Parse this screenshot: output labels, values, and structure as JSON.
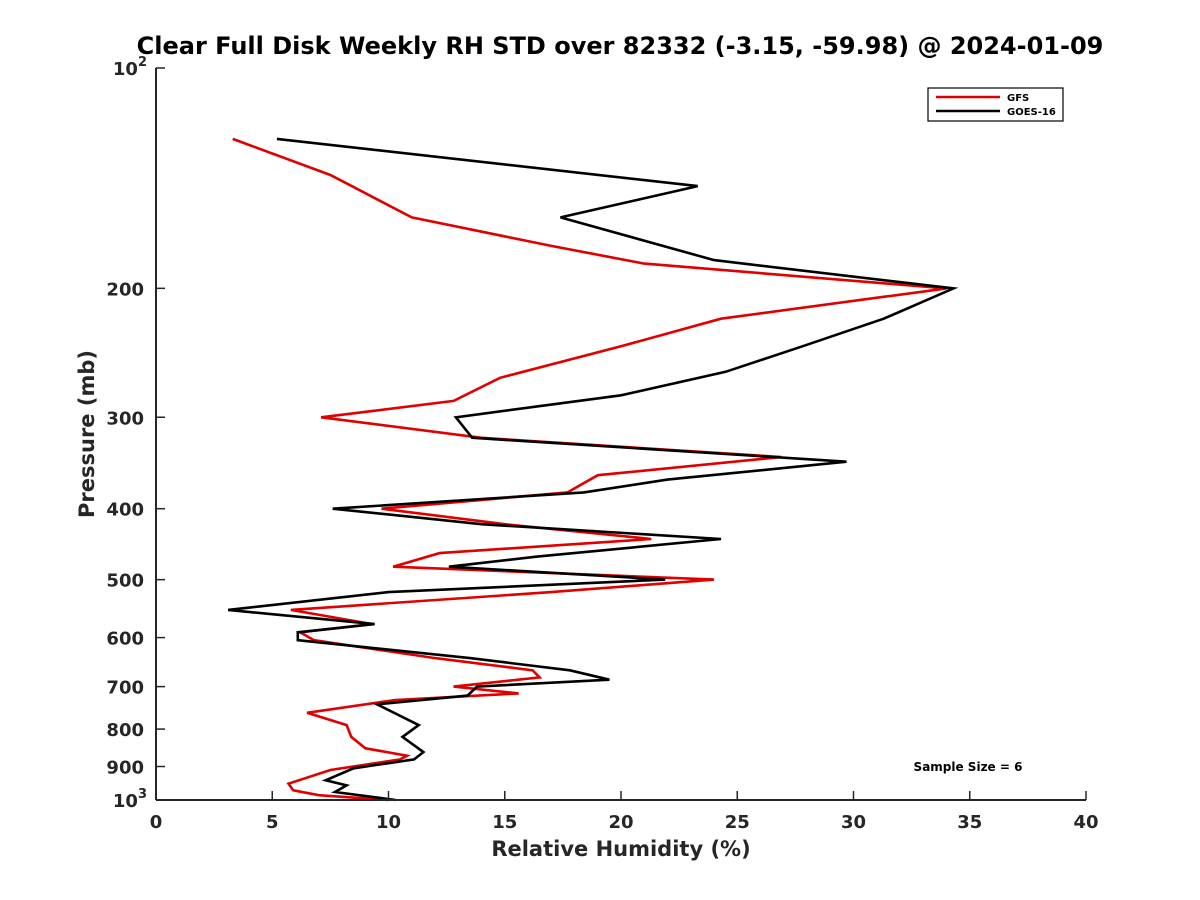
{
  "chart_data": {
    "type": "line",
    "title": "Clear Full Disk Weekly RH STD over 82332 (-3.15, -59.98) @ 2024-01-09",
    "xlabel": "Relative Humidity (%)",
    "ylabel": "Pressure (mb)",
    "xlim": [
      0,
      40
    ],
    "ylim": [
      100,
      1000
    ],
    "y_scale": "log",
    "y_reversed": true,
    "grid": false,
    "legend_position": "top-right",
    "x_ticks": [
      {
        "value": 0,
        "label": "0"
      },
      {
        "value": 5,
        "label": "5"
      },
      {
        "value": 10,
        "label": "10"
      },
      {
        "value": 15,
        "label": "15"
      },
      {
        "value": 20,
        "label": "20"
      },
      {
        "value": 25,
        "label": "25"
      },
      {
        "value": 30,
        "label": "30"
      },
      {
        "value": 35,
        "label": "35"
      },
      {
        "value": 40,
        "label": "40"
      }
    ],
    "y_ticks": [
      {
        "value": 100,
        "base": "10",
        "exp": "2"
      },
      {
        "value": 200,
        "label": "200"
      },
      {
        "value": 300,
        "label": "300"
      },
      {
        "value": 400,
        "label": "400"
      },
      {
        "value": 500,
        "label": "500"
      },
      {
        "value": 600,
        "label": "600"
      },
      {
        "value": 700,
        "label": "700"
      },
      {
        "value": 800,
        "label": "800"
      },
      {
        "value": 900,
        "label": "900"
      },
      {
        "value": 1000,
        "base": "10",
        "exp": "3"
      }
    ],
    "series": [
      {
        "name": "GFS",
        "color": "#e00000",
        "points": [
          {
            "x": 3.3,
            "y": 125
          },
          {
            "x": 7.5,
            "y": 140
          },
          {
            "x": 11.0,
            "y": 160
          },
          {
            "x": 17.0,
            "y": 175
          },
          {
            "x": 21.0,
            "y": 185
          },
          {
            "x": 34.0,
            "y": 200
          },
          {
            "x": 24.3,
            "y": 220
          },
          {
            "x": 20.0,
            "y": 240
          },
          {
            "x": 14.8,
            "y": 265
          },
          {
            "x": 12.8,
            "y": 285
          },
          {
            "x": 7.1,
            "y": 300
          },
          {
            "x": 14.0,
            "y": 320
          },
          {
            "x": 26.9,
            "y": 340
          },
          {
            "x": 19.0,
            "y": 360
          },
          {
            "x": 17.7,
            "y": 380
          },
          {
            "x": 9.7,
            "y": 400
          },
          {
            "x": 15.0,
            "y": 420
          },
          {
            "x": 21.3,
            "y": 440
          },
          {
            "x": 12.2,
            "y": 460
          },
          {
            "x": 10.2,
            "y": 480
          },
          {
            "x": 24.0,
            "y": 500
          },
          {
            "x": 17.0,
            "y": 520
          },
          {
            "x": 5.8,
            "y": 550
          },
          {
            "x": 9.3,
            "y": 575
          },
          {
            "x": 6.2,
            "y": 590
          },
          {
            "x": 6.8,
            "y": 605
          },
          {
            "x": 12.0,
            "y": 640
          },
          {
            "x": 16.2,
            "y": 665
          },
          {
            "x": 16.5,
            "y": 680
          },
          {
            "x": 12.8,
            "y": 700
          },
          {
            "x": 15.6,
            "y": 715
          },
          {
            "x": 10.3,
            "y": 730
          },
          {
            "x": 6.5,
            "y": 760
          },
          {
            "x": 8.2,
            "y": 790
          },
          {
            "x": 8.4,
            "y": 820
          },
          {
            "x": 9.0,
            "y": 850
          },
          {
            "x": 10.8,
            "y": 870
          },
          {
            "x": 10.5,
            "y": 880
          },
          {
            "x": 7.5,
            "y": 910
          },
          {
            "x": 5.7,
            "y": 950
          },
          {
            "x": 5.9,
            "y": 970
          },
          {
            "x": 7.0,
            "y": 985
          },
          {
            "x": 10.0,
            "y": 1000
          }
        ]
      },
      {
        "name": "GOES-16",
        "color": "#000000",
        "points": [
          {
            "x": 5.2,
            "y": 125
          },
          {
            "x": 23.3,
            "y": 145
          },
          {
            "x": 17.4,
            "y": 160
          },
          {
            "x": 24.0,
            "y": 183
          },
          {
            "x": 34.3,
            "y": 200
          },
          {
            "x": 31.3,
            "y": 220
          },
          {
            "x": 27.8,
            "y": 240
          },
          {
            "x": 24.5,
            "y": 260
          },
          {
            "x": 20.0,
            "y": 280
          },
          {
            "x": 12.9,
            "y": 300
          },
          {
            "x": 13.6,
            "y": 320
          },
          {
            "x": 29.7,
            "y": 345
          },
          {
            "x": 22.0,
            "y": 365
          },
          {
            "x": 18.4,
            "y": 380
          },
          {
            "x": 7.6,
            "y": 400
          },
          {
            "x": 14.0,
            "y": 420
          },
          {
            "x": 24.3,
            "y": 440
          },
          {
            "x": 16.4,
            "y": 465
          },
          {
            "x": 12.6,
            "y": 480
          },
          {
            "x": 21.9,
            "y": 500
          },
          {
            "x": 10.0,
            "y": 520
          },
          {
            "x": 3.1,
            "y": 550
          },
          {
            "x": 9.4,
            "y": 575
          },
          {
            "x": 6.1,
            "y": 590
          },
          {
            "x": 6.1,
            "y": 605
          },
          {
            "x": 13.5,
            "y": 640
          },
          {
            "x": 17.8,
            "y": 665
          },
          {
            "x": 19.5,
            "y": 685
          },
          {
            "x": 13.8,
            "y": 700
          },
          {
            "x": 13.4,
            "y": 720
          },
          {
            "x": 9.5,
            "y": 740
          },
          {
            "x": 11.3,
            "y": 790
          },
          {
            "x": 10.6,
            "y": 820
          },
          {
            "x": 11.5,
            "y": 860
          },
          {
            "x": 11.1,
            "y": 880
          },
          {
            "x": 8.5,
            "y": 905
          },
          {
            "x": 7.3,
            "y": 940
          },
          {
            "x": 8.2,
            "y": 955
          },
          {
            "x": 7.7,
            "y": 975
          },
          {
            "x": 10.3,
            "y": 1000
          }
        ]
      }
    ],
    "annotation": "Sample Size = 6"
  }
}
